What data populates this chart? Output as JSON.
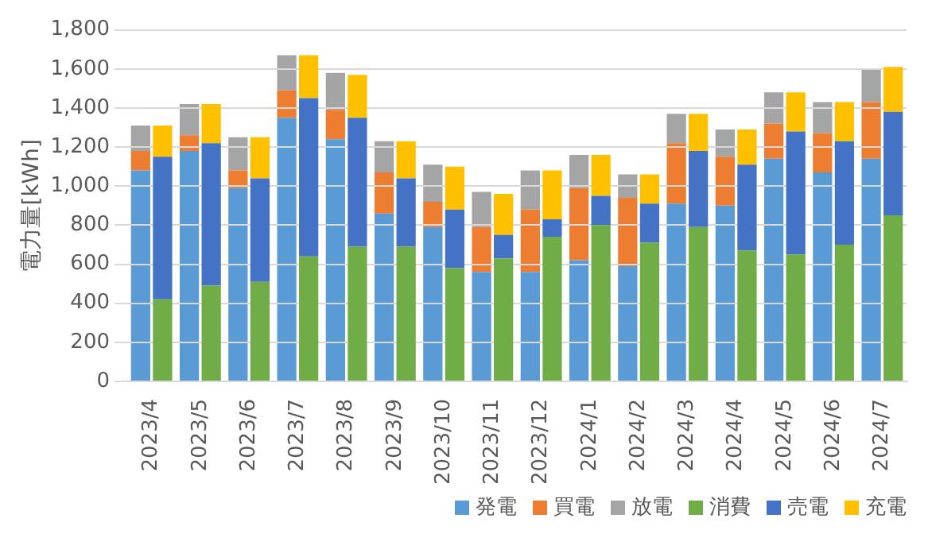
{
  "chart_data": [
    {
      "type": "bar",
      "stacked": true,
      "ylabel": "電力量[kWh]",
      "categories": [
        "2023/4",
        "2023/5",
        "2023/6",
        "2023/7",
        "2023/8",
        "2023/9",
        "2023/10",
        "2023/11",
        "2023/12",
        "2024/1",
        "2024/2",
        "2024/3",
        "2024/4",
        "2024/5",
        "2024/6",
        "2024/7"
      ],
      "series": [
        {
          "name": "発電",
          "color": "#5b9bd5",
          "values": [
            1080,
            1180,
            990,
            1350,
            1240,
            860,
            790,
            560,
            560,
            620,
            590,
            910,
            900,
            1140,
            1070,
            1140
          ]
        },
        {
          "name": "買電",
          "color": "#ed7d31",
          "values": [
            100,
            80,
            90,
            140,
            150,
            210,
            130,
            230,
            320,
            370,
            350,
            310,
            250,
            180,
            200,
            290
          ]
        },
        {
          "name": "放電",
          "color": "#a5a5a5",
          "values": [
            130,
            160,
            170,
            180,
            190,
            160,
            190,
            180,
            200,
            170,
            120,
            150,
            140,
            160,
            160,
            170
          ]
        }
      ],
      "ylim": [
        0,
        1800
      ],
      "yticks": [
        0,
        {
          "value": 200,
          "label": "200"
        },
        400,
        600,
        800,
        {
          "value": 1000,
          "label": "1,000"
        },
        {
          "value": 1200,
          "label": "1,200"
        },
        {
          "value": 1400,
          "label": "1,400"
        },
        {
          "value": 1600,
          "label": "1,600"
        },
        {
          "value": 1800,
          "label": "1,800"
        }
      ],
      "grid": "y",
      "legend": "bottom right",
      "tick_labels": "y"
    },
    {
      "type": "bar",
      "stacked": true,
      "categories": [
        "2023/4",
        "2023/5",
        "2023/6",
        "2023/7",
        "2023/8",
        "2023/9",
        "2023/10",
        "2023/11",
        "2023/12",
        "2024/1",
        "2024/2",
        "2024/3",
        "2024/4",
        "2024/5",
        "2024/6",
        "2024/7"
      ],
      "series": [
        {
          "name": "消費",
          "color": "#70ad47",
          "values": [
            420,
            490,
            510,
            640,
            690,
            690,
            580,
            630,
            740,
            800,
            710,
            790,
            670,
            650,
            700,
            850
          ]
        },
        {
          "name": "売電",
          "color": "#4472c4",
          "values": [
            730,
            730,
            530,
            810,
            660,
            350,
            300,
            120,
            90,
            150,
            200,
            390,
            440,
            630,
            530,
            530
          ]
        },
        {
          "name": "充電",
          "color": "#ffc000",
          "values": [
            160,
            200,
            210,
            220,
            220,
            190,
            220,
            210,
            250,
            210,
            150,
            190,
            180,
            200,
            200,
            230
          ]
        }
      ],
      "ylim": [
        0,
        1800
      ],
      "yticks": [
        0,
        200,
        400,
        600,
        800,
        1000,
        1200,
        1400,
        1600,
        1800
      ],
      "grid": "y",
      "legend": "bottom right",
      "tick_labels": "x"
    }
  ]
}
